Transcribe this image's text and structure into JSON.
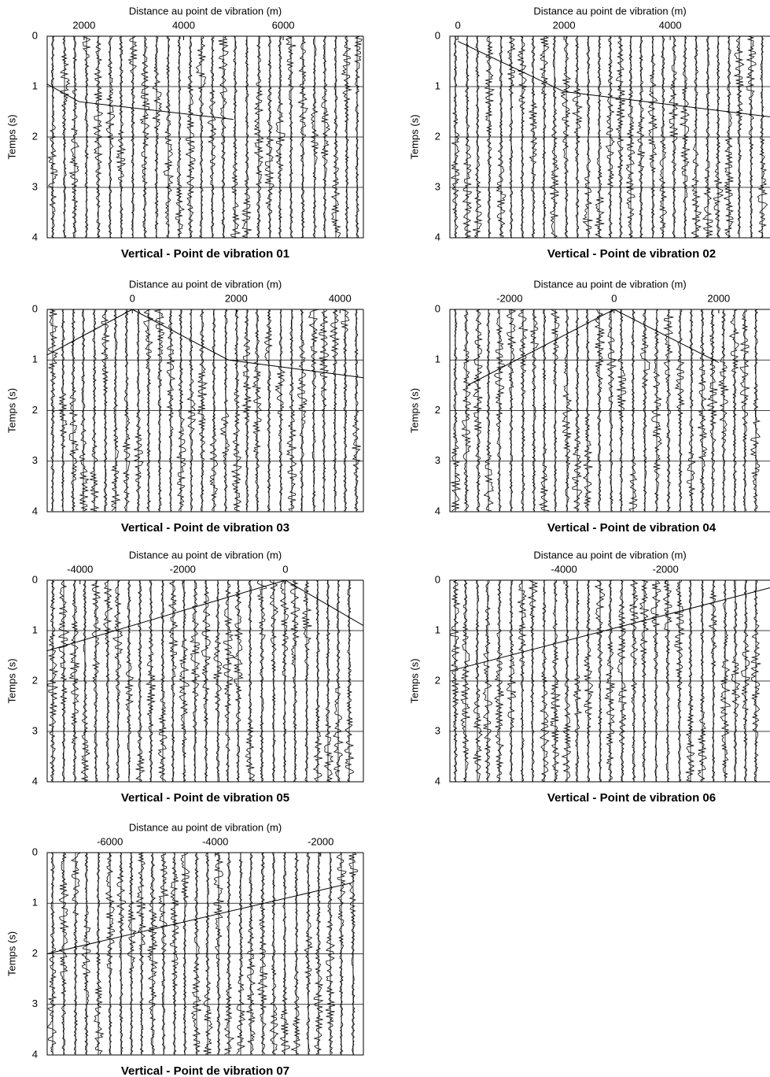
{
  "chart_data": [
    {
      "type": "line",
      "title": "Vertical - Point de vibration 01",
      "x_label": "Distance au point de vibration (m)",
      "y_label": "Temps (s)",
      "xlim": [
        1260,
        7610
      ],
      "xticks": [
        2000,
        4000,
        6000
      ],
      "ylim": [
        0,
        4
      ],
      "yticks": [
        0,
        1,
        2,
        3,
        4
      ],
      "grid": true,
      "color": "#000000",
      "x": [
        1260,
        1900,
        5000
      ],
      "values": [
        0.95,
        1.3,
        1.65
      ]
    },
    {
      "type": "line",
      "title": "Vertical - Point de vibration 02",
      "x_label": "Distance au point de vibration (m)",
      "y_label": "Temps (s)",
      "xlim": [
        -150,
        5880
      ],
      "xticks": [
        0,
        2000,
        4000
      ],
      "ylim": [
        0,
        4
      ],
      "yticks": [
        0,
        1,
        2,
        3,
        4
      ],
      "grid": true,
      "color": "#000000",
      "x": [
        0,
        2000,
        5880
      ],
      "values": [
        0.1,
        1.1,
        1.6
      ]
    },
    {
      "type": "line",
      "title": "Vertical - Point de vibration 03",
      "x_label": "Distance au point de vibration (m)",
      "y_label": "Temps (s)",
      "xlim": [
        -1640,
        4450
      ],
      "xticks": [
        0,
        2000,
        4000
      ],
      "ylim": [
        0,
        4
      ],
      "yticks": [
        0,
        1,
        2,
        3,
        4
      ],
      "grid": true,
      "color": "#000000",
      "x": [
        -1640,
        0,
        1850,
        4450
      ],
      "values": [
        0.9,
        0,
        1.0,
        1.35
      ]
    },
    {
      "type": "line",
      "title": "Vertical - Point de vibration 04",
      "x_label": "Distance au point de vibration (m)",
      "y_label": "Temps (s)",
      "xlim": [
        -3140,
        2980
      ],
      "xticks": [
        -2000,
        0,
        2000
      ],
      "ylim": [
        0,
        4
      ],
      "yticks": [
        0,
        1,
        2,
        3,
        4
      ],
      "grid": true,
      "color": "#000000",
      "x": [
        -2800,
        0,
        2000
      ],
      "values": [
        1.5,
        0,
        1.05
      ]
    },
    {
      "type": "line",
      "title": "Vertical - Point de vibration 05",
      "x_label": "Distance au point de vibration (m)",
      "y_label": "Temps (s)",
      "xlim": [
        -4640,
        1520
      ],
      "xticks": [
        -4000,
        -2000,
        0
      ],
      "ylim": [
        0,
        4
      ],
      "yticks": [
        0,
        1,
        2,
        3,
        4
      ],
      "grid": true,
      "color": "#000000",
      "x": [
        -4640,
        0,
        1520
      ],
      "values": [
        1.4,
        0,
        0.9
      ]
    },
    {
      "type": "line",
      "title": "Vertical - Point de vibration 06",
      "x_label": "Distance au point de vibration (m)",
      "y_label": "Temps (s)",
      "xlim": [
        -6250,
        60
      ],
      "xticks": [
        -4000,
        -2000
      ],
      "ylim": [
        0,
        4
      ],
      "yticks": [
        0,
        1,
        2,
        3,
        4
      ],
      "grid": true,
      "color": "#000000",
      "x": [
        -6250,
        60
      ],
      "values": [
        1.8,
        0.15
      ]
    },
    {
      "type": "line",
      "title": "Vertical - Point de vibration 07",
      "x_label": "Distance au point de vibration (m)",
      "y_label": "Temps (s)",
      "xlim": [
        -7190,
        -1190
      ],
      "xticks": [
        -6000,
        -4000,
        -2000
      ],
      "ylim": [
        0,
        4
      ],
      "yticks": [
        0,
        1,
        2,
        3,
        4
      ],
      "grid": true,
      "color": "#000000",
      "x": [
        -7190,
        -1420
      ],
      "values": [
        2.0,
        0.6
      ]
    }
  ]
}
